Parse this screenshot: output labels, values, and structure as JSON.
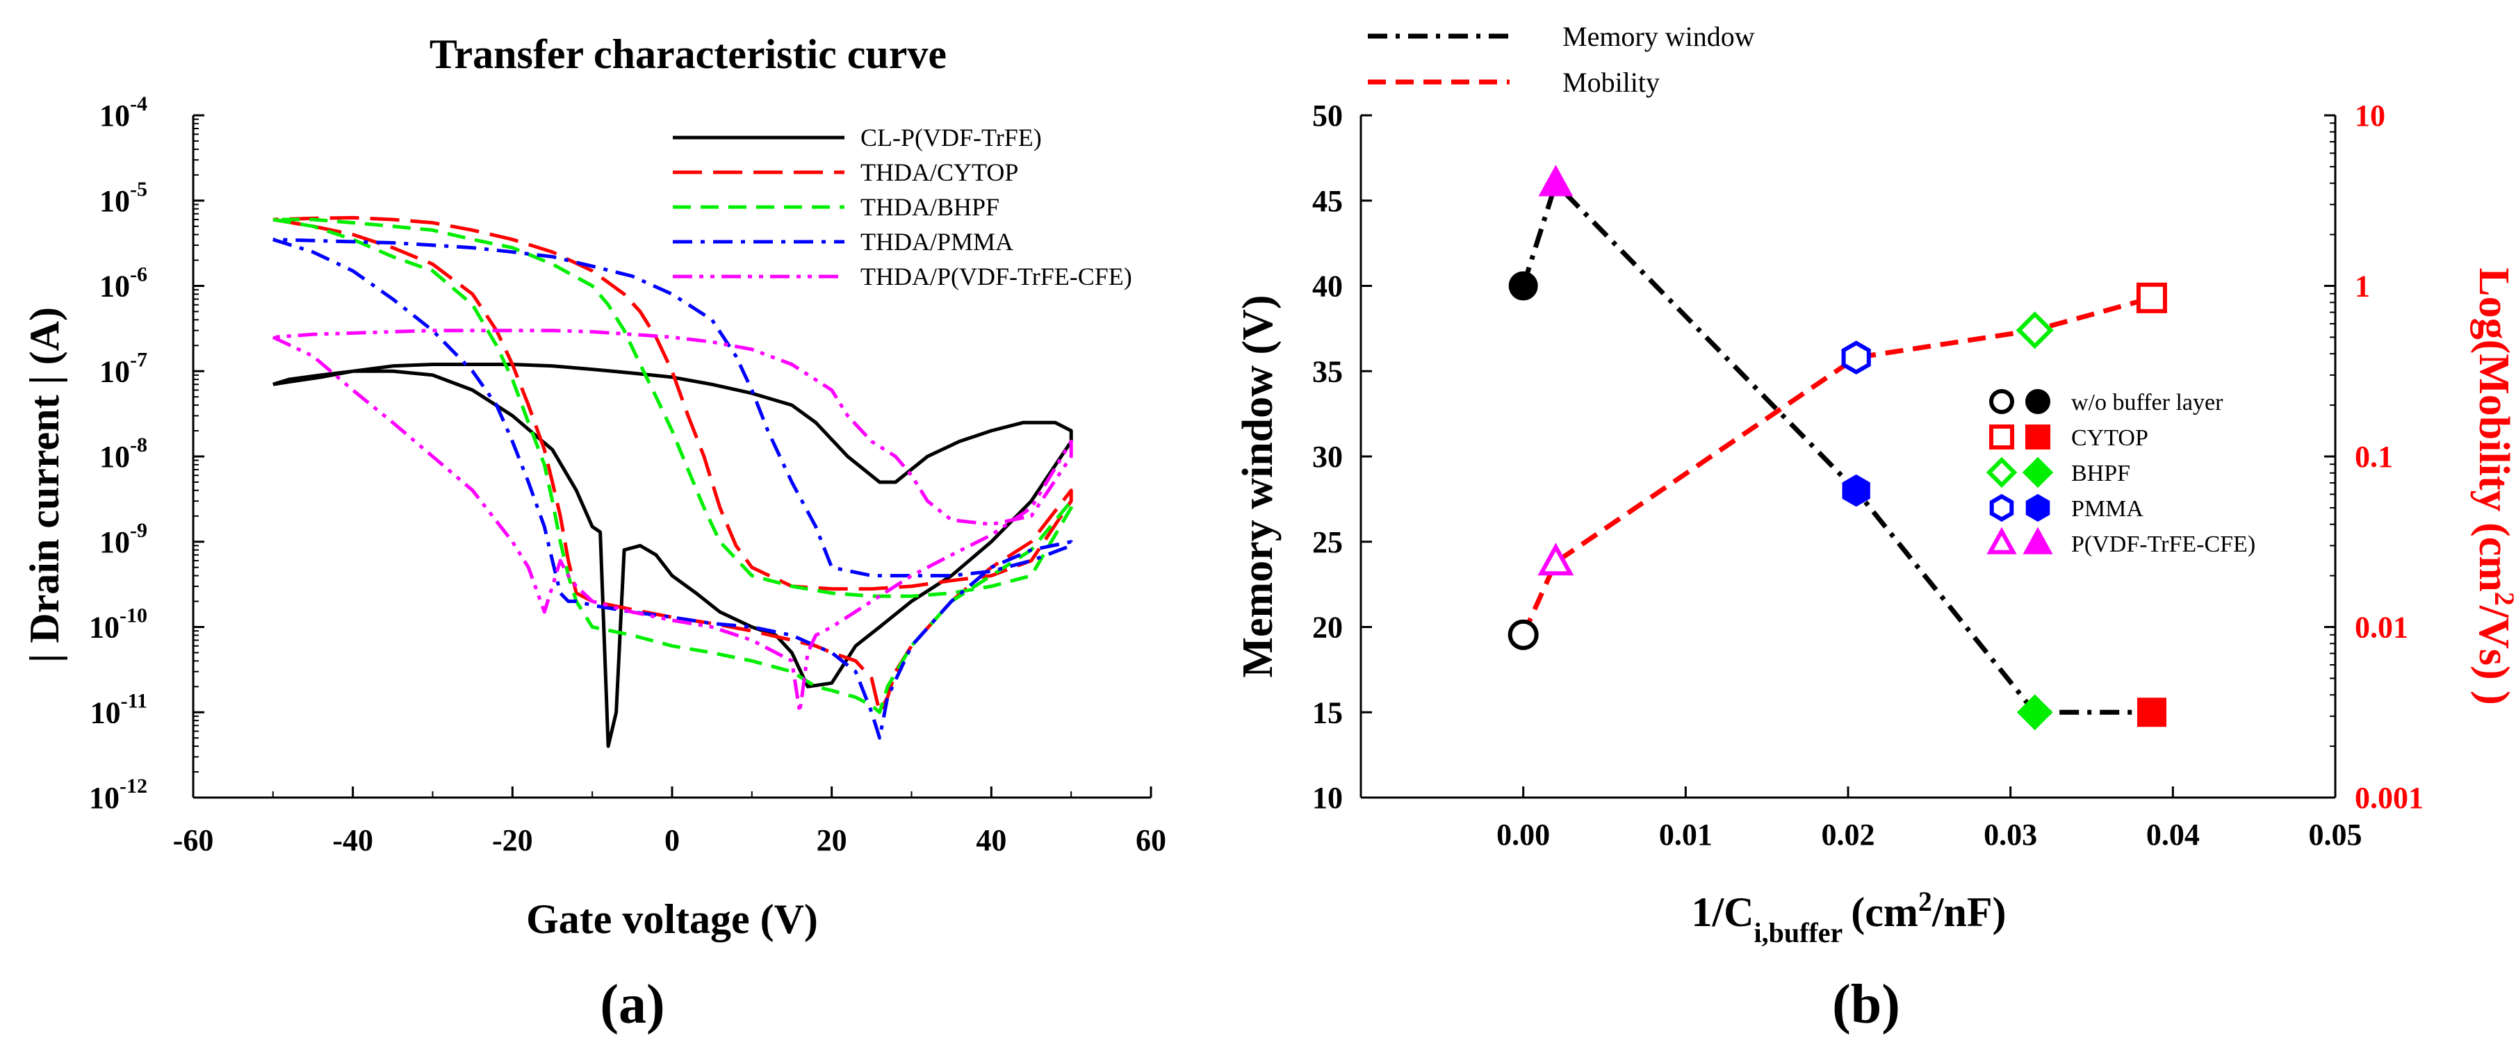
{
  "chart_data": [
    {
      "type": "line",
      "panel_label": "(a)",
      "title": "Transfer characteristic curve",
      "xlabel": "Gate voltage (V)",
      "ylabel": "| Drain current | (A)",
      "xlim": [
        -60,
        60
      ],
      "xticks": [
        "-60",
        "-40",
        "-20",
        "0",
        "20",
        "40",
        "60"
      ],
      "ylim_log10": [
        -12,
        -4
      ],
      "yticks": [
        {
          "base": "10",
          "exp": "-12"
        },
        {
          "base": "10",
          "exp": "-11"
        },
        {
          "base": "10",
          "exp": "-10"
        },
        {
          "base": "10",
          "exp": "-9"
        },
        {
          "base": "10",
          "exp": "-8"
        },
        {
          "base": "10",
          "exp": "-7"
        },
        {
          "base": "10",
          "exp": "-6"
        },
        {
          "base": "10",
          "exp": "-5"
        },
        {
          "base": "10",
          "exp": "-4"
        }
      ],
      "y_scale": "log",
      "legend_position": "top-right",
      "series": [
        {
          "name": "CL-P(VDF-TrFE)",
          "color": "#000000",
          "dash": "solid",
          "x": [
            -50,
            -48,
            -44,
            -40,
            -35,
            -30,
            -25,
            -20,
            -15,
            -12,
            -10,
            -9,
            -8,
            -7,
            -6,
            -4,
            -2,
            0,
            3,
            6,
            10,
            13,
            15,
            17,
            20,
            23,
            26,
            30,
            35,
            40,
            45,
            50,
            50,
            48,
            44,
            40,
            36,
            32,
            28,
            26,
            22,
            18,
            15,
            10,
            5,
            0,
            -5,
            -10,
            -15,
            -20,
            -25,
            -30,
            -35,
            -40,
            -44,
            -48,
            -50
          ],
          "y": [
            7e-08,
            7.5e-08,
            8.5e-08,
            1e-07,
            1e-07,
            9e-08,
            6e-08,
            3e-08,
            1.2e-08,
            4e-09,
            1.5e-09,
            1.3e-09,
            4e-12,
            1e-11,
            8e-10,
            9e-10,
            7e-10,
            4e-10,
            2.5e-10,
            1.5e-10,
            1e-10,
            8e-11,
            5e-11,
            2e-11,
            2.2e-11,
            6e-11,
            1e-10,
            2e-10,
            4e-10,
            1e-09,
            3e-09,
            1.5e-08,
            2e-08,
            2.5e-08,
            2.5e-08,
            2e-08,
            1.5e-08,
            1e-08,
            5e-09,
            5e-09,
            1e-08,
            2.5e-08,
            4e-08,
            5.5e-08,
            7e-08,
            8.5e-08,
            9.5e-08,
            1.05e-07,
            1.15e-07,
            1.2e-07,
            1.2e-07,
            1.2e-07,
            1.15e-07,
            1e-07,
            9e-08,
            8e-08,
            7e-08
          ]
        },
        {
          "name": "THDA/CYTOP",
          "color": "#ff0000",
          "dash": "long",
          "x": [
            -50,
            -45,
            -40,
            -35,
            -30,
            -25,
            -22,
            -20,
            -18,
            -16,
            -15,
            -14,
            -13,
            -12,
            -10,
            -5,
            0,
            5,
            10,
            15,
            18,
            20,
            23,
            25,
            26,
            27,
            28,
            30,
            35,
            40,
            45,
            50,
            50,
            45,
            40,
            35,
            30,
            25,
            20,
            15,
            10,
            8,
            6,
            4,
            2,
            0,
            -2,
            -4,
            -6,
            -10,
            -15,
            -20,
            -25,
            -30,
            -35,
            -40,
            -45,
            -50
          ],
          "y": [
            6e-06,
            5e-06,
            4e-06,
            2.8e-06,
            1.8e-06,
            8e-07,
            3e-07,
            1.2e-07,
            4e-08,
            1.2e-08,
            5e-09,
            2e-09,
            6e-10,
            2.5e-10,
            2e-10,
            1.6e-10,
            1.3e-10,
            1.1e-10,
            9e-11,
            7e-11,
            6e-11,
            5e-11,
            4e-11,
            2.5e-11,
            1e-11,
            1.5e-11,
            3e-11,
            6e-11,
            2e-10,
            5e-10,
            1e-09,
            4e-09,
            3e-09,
            6e-10,
            4e-10,
            3.5e-10,
            3e-10,
            2.8e-10,
            2.8e-10,
            3e-10,
            5e-10,
            9e-10,
            2.5e-09,
            1e-08,
            3e-08,
            1e-07,
            2.5e-07,
            5e-07,
            8e-07,
            1.5e-06,
            2.5e-06,
            3.5e-06,
            4.5e-06,
            5.5e-06,
            6e-06,
            6.3e-06,
            6.2e-06,
            6e-06
          ]
        },
        {
          "name": "THDA/BHPF",
          "color": "#00ee00",
          "dash": "medium",
          "x": [
            -50,
            -45,
            -40,
            -35,
            -30,
            -25,
            -22,
            -20,
            -18,
            -16,
            -15,
            -14,
            -13,
            -12,
            -10,
            -5,
            0,
            5,
            10,
            15,
            18,
            20,
            23,
            25,
            26,
            27,
            30,
            35,
            40,
            45,
            50,
            50,
            45,
            40,
            35,
            30,
            25,
            20,
            15,
            10,
            6,
            4,
            2,
            0,
            -2,
            -4,
            -6,
            -8,
            -10,
            -15,
            -20,
            -25,
            -30,
            -35,
            -40,
            -45,
            -50
          ],
          "y": [
            6e-06,
            5e-06,
            3.5e-06,
            2.2e-06,
            1.5e-06,
            6e-07,
            2e-07,
            8e-08,
            2.5e-08,
            8e-09,
            3e-09,
            1e-09,
            4e-10,
            2e-10,
            1e-10,
            8e-11,
            6e-11,
            5e-11,
            4e-11,
            3e-11,
            2e-11,
            1.8e-11,
            1.5e-11,
            1.2e-11,
            1e-11,
            2e-11,
            6e-11,
            2e-10,
            4e-10,
            8e-10,
            3e-09,
            2.5e-09,
            4e-10,
            3e-10,
            2.5e-10,
            2.3e-10,
            2.3e-10,
            2.5e-10,
            3e-10,
            4e-10,
            1e-09,
            2.5e-09,
            7e-09,
            2e-08,
            5e-08,
            1.2e-07,
            3e-07,
            6e-07,
            1e-06,
            1.8e-06,
            2.8e-06,
            3.5e-06,
            4.5e-06,
            5e-06,
            5.5e-06,
            6e-06,
            6e-06
          ]
        },
        {
          "name": "THDA/PMMA",
          "color": "#0000ff",
          "dash": "dashdot",
          "x": [
            -50,
            -45,
            -40,
            -35,
            -30,
            -25,
            -22,
            -20,
            -18,
            -16,
            -15,
            -14,
            -13,
            -12,
            -10,
            -5,
            0,
            5,
            10,
            15,
            18,
            20,
            23,
            25,
            26,
            27,
            30,
            35,
            40,
            45,
            50,
            50,
            45,
            40,
            35,
            30,
            25,
            20,
            18,
            15,
            12,
            10,
            8,
            5,
            0,
            -5,
            -10,
            -15,
            -20,
            -25,
            -30,
            -35,
            -40,
            -45,
            -50
          ],
          "y": [
            3.5e-06,
            2.5e-06,
            1.5e-06,
            7e-07,
            3e-07,
            1e-07,
            4e-08,
            1.5e-08,
            5e-09,
            1.5e-09,
            6e-10,
            2.5e-10,
            2e-10,
            2e-10,
            1.8e-10,
            1.5e-10,
            1.3e-10,
            1.1e-10,
            1e-10,
            8e-11,
            6e-11,
            5e-11,
            3e-11,
            1e-11,
            5e-12,
            1.5e-11,
            6e-11,
            2e-10,
            5e-10,
            8e-10,
            1e-09,
            9e-10,
            6e-10,
            4.5e-10,
            4e-10,
            4e-10,
            4e-10,
            5e-10,
            1.5e-09,
            5e-09,
            2e-08,
            6e-08,
            1.5e-07,
            4e-07,
            8e-07,
            1.3e-06,
            1.7e-06,
            2.2e-06,
            2.5e-06,
            2.8e-06,
            3e-06,
            3.2e-06,
            3.3e-06,
            3.4e-06,
            3.5e-06
          ]
        },
        {
          "name": "THDA/P(VDF-TrFE-CFE)",
          "color": "#ff00ff",
          "dash": "dashdotdot",
          "x": [
            -50,
            -45,
            -40,
            -35,
            -30,
            -25,
            -20,
            -18,
            -16,
            -15,
            -14,
            -13,
            -12,
            -10,
            -5,
            0,
            5,
            10,
            15,
            16,
            17,
            18,
            20,
            25,
            30,
            35,
            40,
            45,
            50,
            50,
            45,
            40,
            35,
            32,
            30,
            28,
            25,
            22,
            20,
            15,
            10,
            5,
            0,
            -5,
            -10,
            -15,
            -20,
            -25,
            -30,
            -35,
            -40,
            -45,
            -50
          ],
          "y": [
            2.5e-07,
            1.5e-07,
            6e-08,
            2.5e-08,
            1e-08,
            4e-09,
            1e-09,
            5e-10,
            1.5e-10,
            3e-10,
            6e-10,
            4e-10,
            3e-10,
            2e-10,
            1.5e-10,
            1.2e-10,
            1e-10,
            7e-11,
            4e-11,
            1e-11,
            5e-11,
            8e-11,
            1e-10,
            2e-10,
            4e-10,
            7e-10,
            1.2e-09,
            2.5e-09,
            1.5e-08,
            1e-08,
            2e-09,
            1.6e-09,
            1.8e-09,
            3e-09,
            6e-09,
            1e-08,
            1.5e-08,
            3e-08,
            6e-08,
            1.2e-07,
            1.8e-07,
            2.2e-07,
            2.5e-07,
            2.7e-07,
            2.9e-07,
            3e-07,
            3e-07,
            3e-07,
            3e-07,
            2.9e-07,
            2.8e-07,
            2.7e-07,
            2.5e-07
          ]
        }
      ]
    },
    {
      "type": "line",
      "panel_label": "(b)",
      "title": "",
      "xlabel": "1/C",
      "xlabel_sub": "i,buffer",
      "xlabel_unit_pre": "(cm",
      "xlabel_unit_sup": "2",
      "xlabel_unit_post": "/nF)",
      "ylabel": "Memory window (V)",
      "ylabel2_pre": "Log(Mobility (cm",
      "ylabel2_sup": "2",
      "ylabel2_post": "/Vs) )",
      "xlim": [
        -0.01,
        0.05
      ],
      "xticks": [
        "0.00",
        "0.01",
        "0.02",
        "0.03",
        "0.04",
        "0.05"
      ],
      "ylim": [
        10,
        50
      ],
      "yticks": [
        "10",
        "15",
        "20",
        "25",
        "30",
        "35",
        "40",
        "45",
        "50"
      ],
      "y2_scale": "log",
      "y2lim_log10": [
        -3,
        1
      ],
      "y2ticks": [
        "0.001",
        "0.01",
        "0.1",
        "1",
        "10"
      ],
      "legend_position": "top-left",
      "line_legend": [
        {
          "name": "Memory window",
          "color": "#000000",
          "dash": "dashdot"
        },
        {
          "name": "Mobility",
          "color": "#ff0000",
          "dash": "dashed"
        }
      ],
      "marker_legend": [
        {
          "name": "w/o buffer layer",
          "marker": "circle",
          "color": "#000000"
        },
        {
          "name": "CYTOP",
          "marker": "square",
          "color": "#ff0000"
        },
        {
          "name": "BHPF",
          "marker": "diamond",
          "color": "#00ee00"
        },
        {
          "name": "PMMA",
          "marker": "hexagon",
          "color": "#0000ff"
        },
        {
          "name": "P(VDF-TrFE-CFE)",
          "marker": "triangle",
          "color": "#ff00ff"
        }
      ],
      "series": [
        {
          "name": "Memory window",
          "axis": "left",
          "points": [
            {
              "material": "w/o buffer layer",
              "x": 0.0,
              "y": 40
            },
            {
              "material": "P(VDF-TrFE-CFE)",
              "x": 0.002,
              "y": 46
            },
            {
              "material": "PMMA",
              "x": 0.0205,
              "y": 28
            },
            {
              "material": "BHPF",
              "x": 0.0315,
              "y": 15
            },
            {
              "material": "CYTOP",
              "x": 0.0387,
              "y": 15
            }
          ]
        },
        {
          "name": "Mobility",
          "axis": "right",
          "unit": "cm2/Vs",
          "points": [
            {
              "material": "w/o buffer layer",
              "x": 0.0,
              "y": 0.009
            },
            {
              "material": "P(VDF-TrFE-CFE)",
              "x": 0.002,
              "y": 0.024
            },
            {
              "material": "PMMA",
              "x": 0.0205,
              "y": 0.38
            },
            {
              "material": "BHPF",
              "x": 0.0315,
              "y": 0.55
            },
            {
              "material": "CYTOP",
              "x": 0.0387,
              "y": 0.85
            }
          ]
        }
      ]
    }
  ]
}
